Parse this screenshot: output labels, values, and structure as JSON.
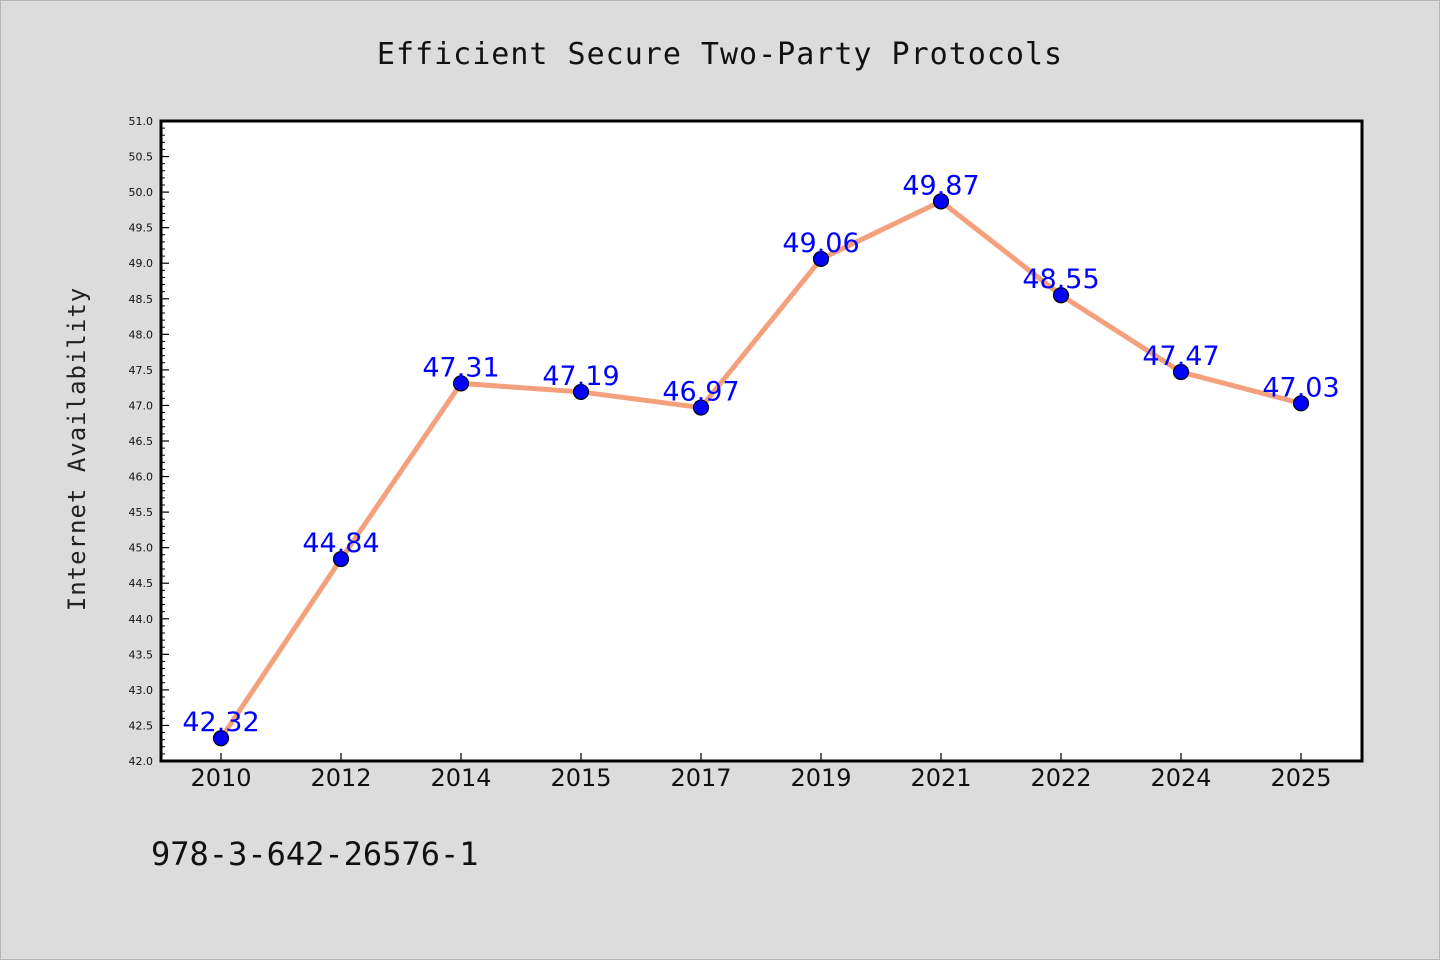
{
  "colors": {
    "background": "#dcdcdc",
    "plot_area": "#ffffff",
    "line": "#f4a07c",
    "marker": "#0000ff",
    "data_label": "#0000ff"
  },
  "footer": {
    "text": "978-3-642-26576-1"
  },
  "chart_data": {
    "type": "line",
    "title": "Efficient Secure Two-Party Protocols",
    "xlabel": "",
    "ylabel": "Internet Availability",
    "categories": [
      "2010",
      "2012",
      "2014",
      "2015",
      "2017",
      "2019",
      "2021",
      "2022",
      "2024",
      "2025"
    ],
    "series": [
      {
        "values": [
          42.32,
          44.84,
          47.31,
          47.19,
          46.97,
          49.06,
          49.87,
          48.55,
          47.47,
          47.03
        ],
        "labels": [
          "42.32",
          "44.84",
          "47.31",
          "47.19",
          "46.97",
          "49.06",
          "49.87",
          "48.55",
          "47.47",
          "47.03"
        ]
      }
    ],
    "ylim": [
      42.0,
      51.0
    ],
    "yticks": [
      "42.0",
      "42.5",
      "43.0",
      "43.5",
      "44.0",
      "44.5",
      "45.0",
      "45.5",
      "46.0",
      "46.5",
      "47.0",
      "47.5",
      "48.0",
      "48.5",
      "49.0",
      "49.5",
      "50.0",
      "50.5",
      "51.0"
    ],
    "grid": false,
    "legend": "none"
  }
}
